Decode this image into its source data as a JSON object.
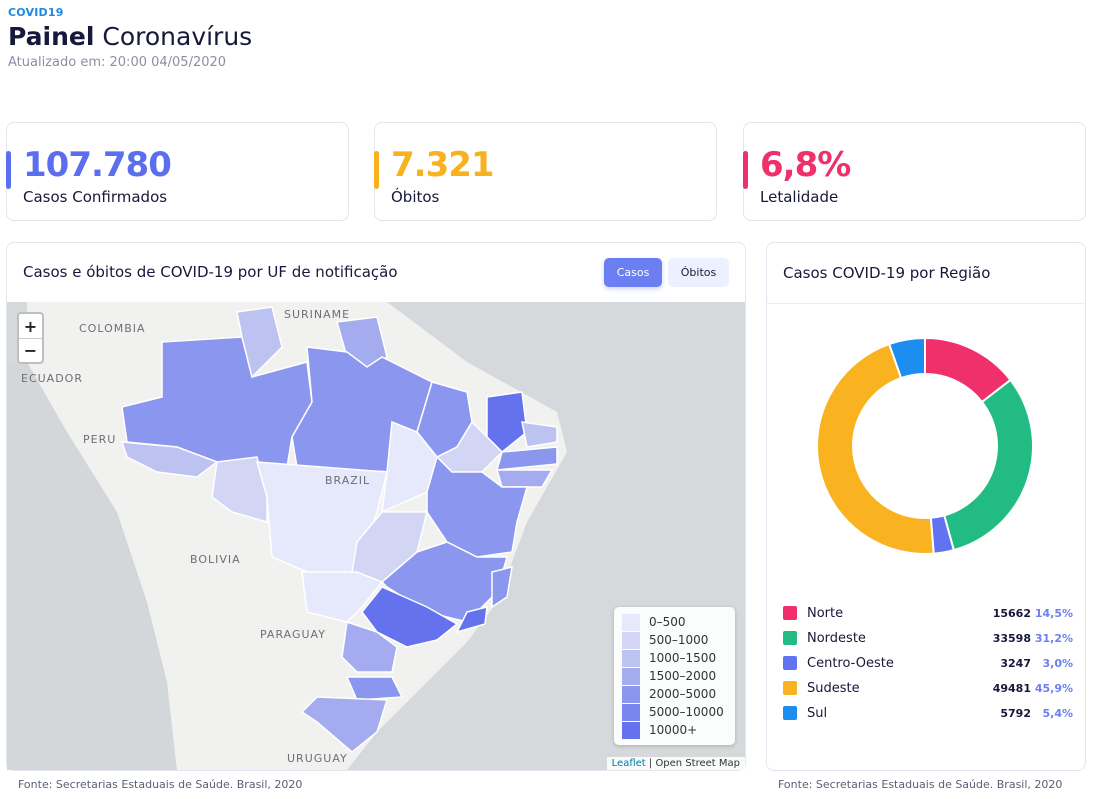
{
  "header": {
    "brand": "COVID19",
    "title_bold": "Painel",
    "title_rest": "Coronavírus",
    "updated_label": "Atualizado em:",
    "updated_value": "20:00 04/05/2020"
  },
  "stats": [
    {
      "value": "107.780",
      "label": "Casos Confirmados",
      "color": "#5b6ef0"
    },
    {
      "value": "7.321",
      "label": "Óbitos",
      "color": "#f9b21e"
    },
    {
      "value": "6,8%",
      "label": "Letalidade",
      "color": "#f0306b"
    }
  ],
  "map_panel": {
    "title": "Casos e óbitos de COVID-19 por UF de notificação",
    "btn_cases": "Casos",
    "btn_deaths": "Óbitos",
    "zoom_in": "+",
    "zoom_out": "−",
    "labels": {
      "colombia": "COLOMBIA",
      "suriname": "SURINAME",
      "ecuador": "ECUADOR",
      "peru": "PERU",
      "brazil": "BRAZIL",
      "bolivia": "BOLIVIA",
      "paraguay": "PARAGUAY",
      "uruguay": "URUGUAY"
    },
    "legend": [
      {
        "label": "0–500",
        "color": "#e6e9fb"
      },
      {
        "label": "500–1000",
        "color": "#d2d6f4"
      },
      {
        "label": "1000–1500",
        "color": "#bdc3f0"
      },
      {
        "label": "1500–2000",
        "color": "#a4acef"
      },
      {
        "label": "2000–5000",
        "color": "#8b96ee"
      },
      {
        "label": "5000–10000",
        "color": "#7a86ee"
      },
      {
        "label": "10000+",
        "color": "#6472ee"
      }
    ],
    "attribution_leaflet": "Leaflet",
    "attribution_osm": "| Open Street Map"
  },
  "region_panel": {
    "title": "Casos COVID-19 por Região"
  },
  "chart_data": {
    "type": "pie",
    "title": "Casos COVID-19 por Região",
    "categories": [
      "Norte",
      "Nordeste",
      "Centro-Oeste",
      "Sudeste",
      "Sul"
    ],
    "values": [
      15662,
      33598,
      3247,
      49481,
      5792
    ],
    "percent_labels": [
      "14,5%",
      "31,2%",
      "3,0%",
      "45,9%",
      "5,4%"
    ],
    "colors": [
      "#f0306b",
      "#22bb84",
      "#6273f2",
      "#f9b320",
      "#1d8ef0"
    ],
    "legend_placement": "bottom"
  },
  "footer": {
    "left": "Fonte: Secretarias Estaduais de Saúde. Brasil, 2020",
    "right": "Fonte: Secretarias Estaduais de Saúde. Brasil, 2020"
  }
}
